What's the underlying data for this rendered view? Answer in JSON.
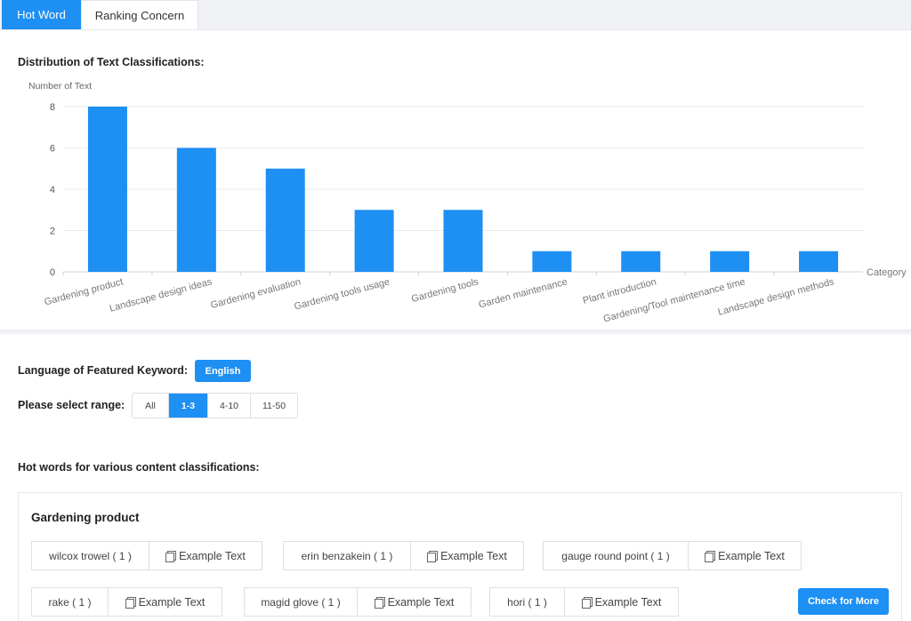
{
  "tabs": [
    {
      "label": "Hot Word",
      "active": true
    },
    {
      "label": "Ranking Concern",
      "active": false
    }
  ],
  "chart_section": {
    "title": "Distribution of Text Classifications:"
  },
  "chart_data": {
    "type": "bar",
    "ylabel": "Number of Text",
    "xlabel": "Category",
    "ylim": [
      0,
      8
    ],
    "yticks": [
      0,
      2,
      4,
      6,
      8
    ],
    "grid": true,
    "color": "#1e8ff3",
    "categories": [
      "Gardening product",
      "Landscape design ideas",
      "Gardening evaluation",
      "Gardening tools usage",
      "Gardening tools",
      "Garden maintenance",
      "Plant introduction",
      "Gardening/Tool maintenance time",
      "Landscape design methods"
    ],
    "values": [
      8,
      6,
      5,
      3,
      3,
      1,
      1,
      1,
      1
    ]
  },
  "language": {
    "label": "Language of Featured Keyword:",
    "value": "English"
  },
  "range": {
    "label": "Please select range:",
    "options": [
      "All",
      "1-3",
      "4-10",
      "11-50"
    ],
    "selected": "1-3"
  },
  "hotwords": {
    "title": "Hot words for various content classifications:",
    "example_label": "Example Text",
    "more_label": "Check for More",
    "category": "Gardening product",
    "row1": [
      {
        "text": "wilcox trowel ( 1 )"
      },
      {
        "text": "erin benzakein ( 1 )"
      },
      {
        "text": "gauge round point ( 1 )"
      }
    ],
    "row2": [
      {
        "text": "rake ( 1 )"
      },
      {
        "text": "magid glove ( 1 )"
      },
      {
        "text": "hori ( 1 )"
      }
    ]
  }
}
